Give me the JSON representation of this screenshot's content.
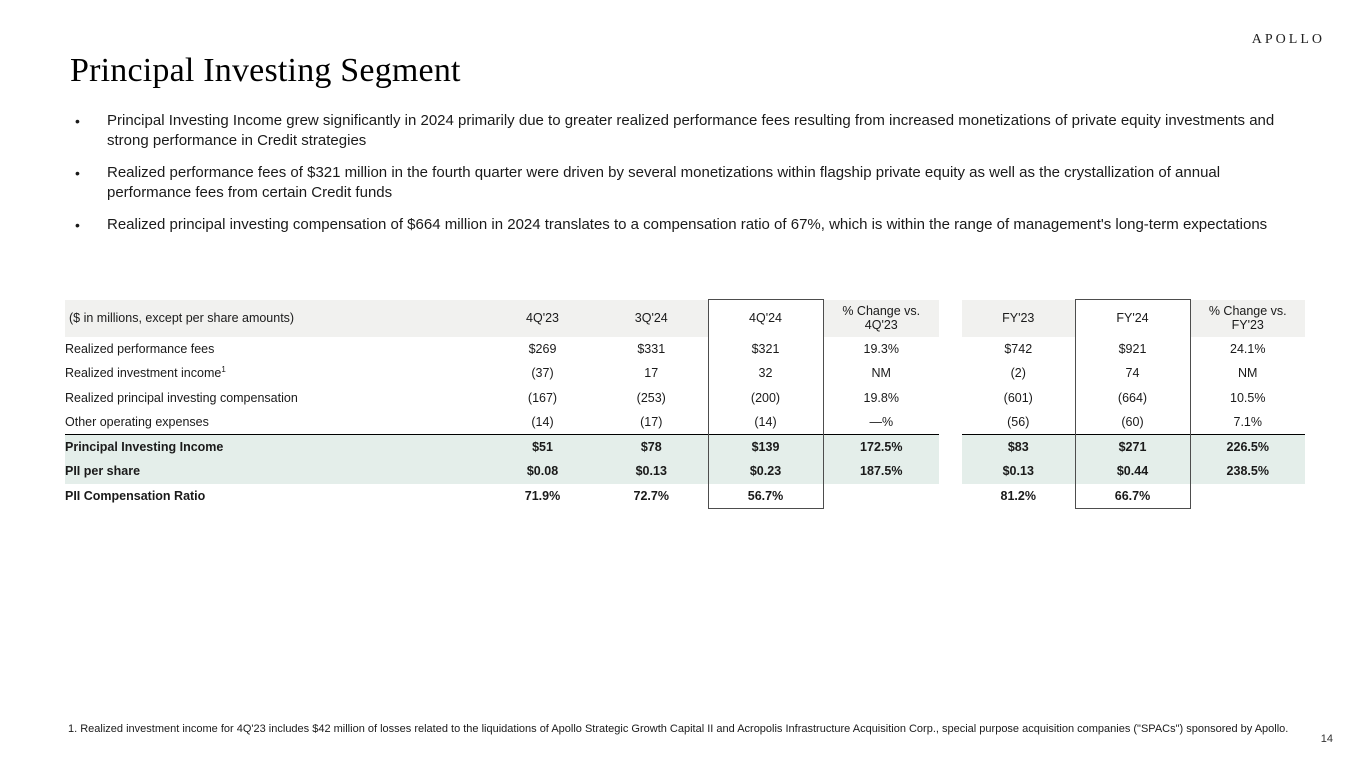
{
  "logo_text": "APOLLO",
  "title": "Principal Investing Segment",
  "bullets": [
    "Principal Investing Income grew significantly in 2024 primarily due to greater realized performance fees resulting from increased monetizations of private equity investments and strong performance in Credit strategies",
    "Realized performance fees of $321 million in the fourth quarter were driven by several monetizations within flagship private equity as well as the crystallization of annual performance fees from certain Credit funds",
    "Realized principal investing compensation of $664 million in 2024 translates to a compensation ratio of 67%, which is within the range of management's long-term expectations"
  ],
  "table": {
    "label_header": "($ in millions, except per share amounts)",
    "columns": [
      "4Q'23",
      "3Q'24",
      "4Q'24",
      "% Change vs. 4Q'23",
      "FY'23",
      "FY'24",
      "% Change vs. FY'23"
    ],
    "rows": [
      {
        "label": "Realized performance fees",
        "values": [
          "$269",
          "$331",
          "$321",
          "19.3%",
          "$742",
          "$921",
          "24.1%"
        ]
      },
      {
        "label": "Realized investment income",
        "sup": "1",
        "values": [
          "(37)",
          "17",
          "32",
          "NM",
          "(2)",
          "74",
          "NM"
        ]
      },
      {
        "label": "Realized principal investing compensation",
        "values": [
          "(167)",
          "(253)",
          "(200)",
          "19.8%",
          "(601)",
          "(664)",
          "10.5%"
        ]
      },
      {
        "label": "Other operating expenses",
        "values": [
          "(14)",
          "(17)",
          "(14)",
          "—%",
          "(56)",
          "(60)",
          "7.1%"
        ]
      },
      {
        "label": "Principal Investing Income",
        "values": [
          "$51",
          "$78",
          "$139",
          "172.5%",
          "$83",
          "$271",
          "226.5%"
        ],
        "bold": true,
        "highlight": true,
        "rule_above": true
      },
      {
        "label": "PII per share",
        "values": [
          "$0.08",
          "$0.13",
          "$0.23",
          "187.5%",
          "$0.13",
          "$0.44",
          "238.5%"
        ],
        "bold": true,
        "highlight": true
      },
      {
        "label": "PII Compensation Ratio",
        "values": [
          "71.9%",
          "72.7%",
          "56.7%",
          "",
          "81.2%",
          "66.7%",
          ""
        ],
        "bold": true
      }
    ]
  },
  "footnote": "1. Realized investment income for 4Q'23 includes $42 million of losses related to the liquidations of Apollo Strategic Growth Capital II and Acropolis Infrastructure Acquisition Corp., special purpose acquisition companies (\"SPACs\") sponsored by Apollo.",
  "page_number": "14",
  "colors": {
    "header_bg": "#f1f1ef",
    "highlight_bg": "#e4eeea",
    "box_border": "#4d4d4d",
    "rule": "#000000"
  }
}
